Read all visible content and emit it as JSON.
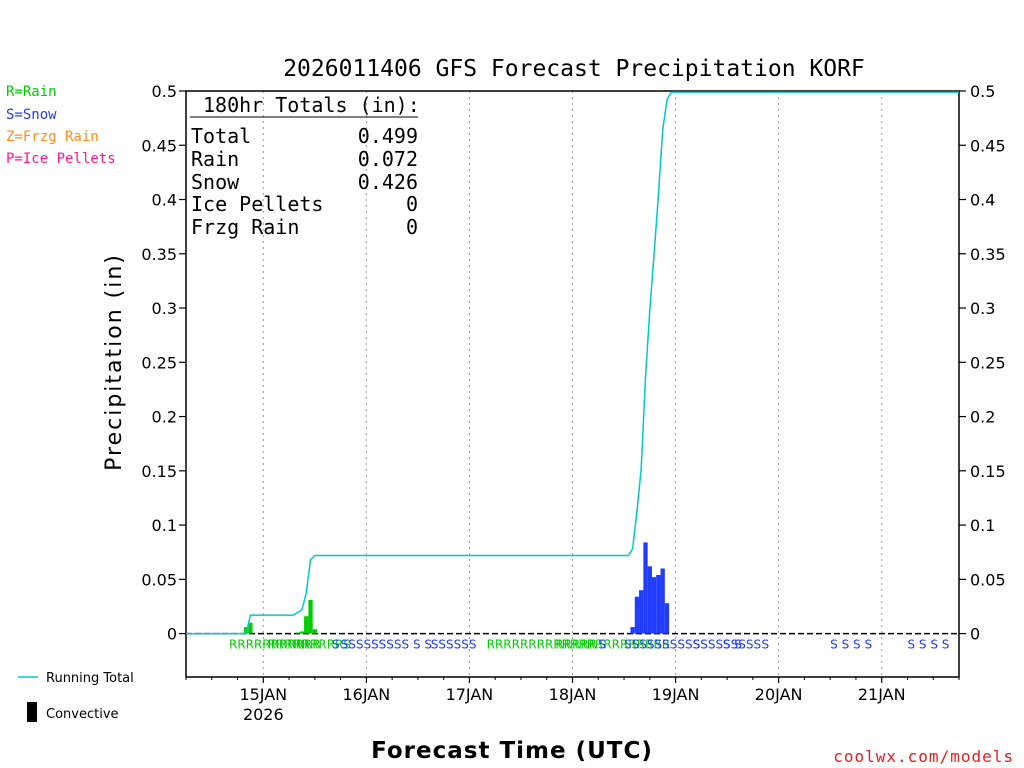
{
  "title": "2026011406 GFS Forecast Precipitation KORF",
  "credit": "coolwx.com/models",
  "legend": {
    "rain": "R=Rain",
    "snow": "S=Snow",
    "frzg": "Z=Frzg Rain",
    "ice": "P=Ice Pellets",
    "running_total": "Running Total",
    "convective": "Convective"
  },
  "colors": {
    "rain": "#00cc00",
    "snow": "#1f3cff",
    "frzg": "#ff8c1a",
    "ice": "#ff1493",
    "running": "#00c8c8",
    "grid": "#999999"
  },
  "totals": {
    "header": "180hr Totals (in):",
    "rows": [
      {
        "label": "Total",
        "value": "0.499"
      },
      {
        "label": "Rain",
        "value": "0.072"
      },
      {
        "label": "Snow",
        "value": "0.426"
      },
      {
        "label": "Ice Pellets",
        "value": "0"
      },
      {
        "label": "Frzg Rain",
        "value": "0"
      }
    ]
  },
  "chart_data": {
    "type": "bar",
    "title": "2026011406 GFS Forecast Precipitation KORF",
    "xlabel": "Forecast Time (UTC)",
    "ylabel": "Precipitation (in)",
    "ylim": [
      -0.04,
      0.5
    ],
    "xlim_hours": [
      0,
      180
    ],
    "yticks": [
      0,
      0.05,
      0.1,
      0.15,
      0.2,
      0.25,
      0.3,
      0.35,
      0.4,
      0.45,
      0.5
    ],
    "ytick_labels": [
      "0",
      "0.05",
      "0.1",
      "0.15",
      "0.2",
      "0.25",
      "0.3",
      "0.35",
      "0.4",
      "0.45",
      "0.5"
    ],
    "xticks": [
      {
        "hour": 18,
        "label": "15JAN",
        "sub": "2026"
      },
      {
        "hour": 42,
        "label": "16JAN",
        "sub": ""
      },
      {
        "hour": 66,
        "label": "17JAN",
        "sub": ""
      },
      {
        "hour": 90,
        "label": "18JAN",
        "sub": ""
      },
      {
        "hour": 114,
        "label": "19JAN",
        "sub": ""
      },
      {
        "hour": 138,
        "label": "20JAN",
        "sub": ""
      },
      {
        "hour": 162,
        "label": "21JAN",
        "sub": ""
      }
    ],
    "bars": [
      {
        "hour": 14,
        "type": "rain",
        "value": 0.006
      },
      {
        "hour": 15,
        "type": "rain",
        "value": 0.01
      },
      {
        "hour": 26,
        "type": "rain",
        "value": 0.001
      },
      {
        "hour": 27,
        "type": "rain",
        "value": 0.002
      },
      {
        "hour": 28,
        "type": "rain",
        "value": 0.016
      },
      {
        "hour": 29,
        "type": "rain",
        "value": 0.031
      },
      {
        "hour": 30,
        "type": "rain",
        "value": 0.004
      },
      {
        "hour": 104,
        "type": "snow",
        "value": 0.006
      },
      {
        "hour": 105,
        "type": "snow",
        "value": 0.034
      },
      {
        "hour": 106,
        "type": "snow",
        "value": 0.04
      },
      {
        "hour": 107,
        "type": "snow",
        "value": 0.084
      },
      {
        "hour": 108,
        "type": "snow",
        "value": 0.062
      },
      {
        "hour": 109,
        "type": "snow",
        "value": 0.052
      },
      {
        "hour": 110,
        "type": "snow",
        "value": 0.054
      },
      {
        "hour": 111,
        "type": "snow",
        "value": 0.06
      },
      {
        "hour": 112,
        "type": "snow",
        "value": 0.028
      }
    ],
    "running_total": [
      {
        "hour": 0,
        "value": 0
      },
      {
        "hour": 14,
        "value": 0
      },
      {
        "hour": 15,
        "value": 0.017
      },
      {
        "hour": 24,
        "value": 0.017
      },
      {
        "hour": 25,
        "value": 0.017
      },
      {
        "hour": 27,
        "value": 0.022
      },
      {
        "hour": 28,
        "value": 0.037
      },
      {
        "hour": 29,
        "value": 0.068
      },
      {
        "hour": 30,
        "value": 0.072
      },
      {
        "hour": 103,
        "value": 0.072
      },
      {
        "hour": 104,
        "value": 0.078
      },
      {
        "hour": 105,
        "value": 0.112
      },
      {
        "hour": 106,
        "value": 0.152
      },
      {
        "hour": 107,
        "value": 0.236
      },
      {
        "hour": 108,
        "value": 0.298
      },
      {
        "hour": 109,
        "value": 0.35
      },
      {
        "hour": 110,
        "value": 0.404
      },
      {
        "hour": 111,
        "value": 0.464
      },
      {
        "hour": 112,
        "value": 0.492
      },
      {
        "hour": 113,
        "value": 0.499
      },
      {
        "hour": 180,
        "value": 0.499
      }
    ],
    "ptype_markers": [
      {
        "hour": 10,
        "code": "RRRRRRRRRRR",
        "type": "rain"
      },
      {
        "hour": 19,
        "code": "RRRRR",
        "type": "rain"
      },
      {
        "hour": 25,
        "code": "RRRRRRS",
        "type": "rain"
      },
      {
        "hour": 34,
        "code": "S",
        "type": "snow"
      },
      {
        "hour": 36,
        "code": "SSSSSSSSS S S",
        "type": "snow"
      },
      {
        "hour": 57,
        "code": "SSSSSS",
        "type": "snow"
      },
      {
        "hour": 70,
        "code": "RRRRRRRRRRRRRRRRRRRRRR",
        "type": "rain"
      },
      {
        "hour": 86,
        "code": "RRRRR",
        "type": "rain"
      },
      {
        "hour": 96,
        "code": "S",
        "type": "snow"
      },
      {
        "hour": 102,
        "code": "SSSSSSSSSSSSSSSSSS",
        "type": "snow"
      },
      {
        "hour": 118,
        "code": "S",
        "type": "snow"
      },
      {
        "hour": 125,
        "code": "S S",
        "type": "snow"
      },
      {
        "hour": 134,
        "code": "S",
        "type": "snow"
      },
      {
        "hour": 150,
        "code": "S S S S",
        "type": "snow"
      },
      {
        "hour": 168,
        "code": "S S S S",
        "type": "snow"
      }
    ]
  }
}
